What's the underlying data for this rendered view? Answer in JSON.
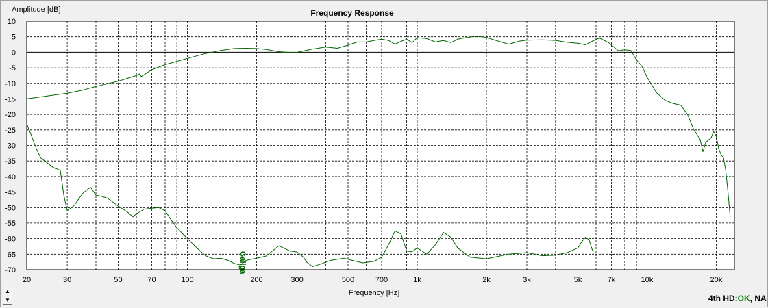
{
  "chart_data": {
    "type": "line",
    "title": "Frequency Response",
    "xlabel": "Frequency [Hz]",
    "ylabel": "Amplitude [dB]",
    "x_scale": "log",
    "xlim": [
      20,
      24000
    ],
    "ylim": [
      -70,
      10
    ],
    "grid": true,
    "x_tick_labels": [
      {
        "value": 20,
        "label": "20"
      },
      {
        "value": 30,
        "label": "30"
      },
      {
        "value": 50,
        "label": "50"
      },
      {
        "value": 70,
        "label": "70"
      },
      {
        "value": 100,
        "label": "100"
      },
      {
        "value": 200,
        "label": "200"
      },
      {
        "value": 300,
        "label": "300"
      },
      {
        "value": 500,
        "label": "500"
      },
      {
        "value": 700,
        "label": "700"
      },
      {
        "value": 1000,
        "label": "1k"
      },
      {
        "value": 2000,
        "label": "2k"
      },
      {
        "value": 3000,
        "label": "3k"
      },
      {
        "value": 5000,
        "label": "5k"
      },
      {
        "value": 7000,
        "label": "7k"
      },
      {
        "value": 10000,
        "label": "10k"
      },
      {
        "value": 20000,
        "label": "20k"
      }
    ],
    "x_minor_gridlines": [
      40,
      60,
      80,
      90,
      400,
      600,
      800,
      900,
      4000,
      6000,
      8000,
      9000
    ],
    "y_ticks": [
      10,
      5,
      0,
      -5,
      -10,
      -15,
      -20,
      -25,
      -30,
      -35,
      -40,
      -45,
      -50,
      -55,
      -60,
      -65,
      -70
    ],
    "annotation": {
      "text": "Galiga",
      "x": 170,
      "y": -64
    },
    "series": [
      {
        "color": "#006400",
        "points": [
          [
            20,
            -15
          ],
          [
            25,
            -14
          ],
          [
            30,
            -13.2
          ],
          [
            35,
            -12.2
          ],
          [
            40,
            -11
          ],
          [
            50,
            -9.3
          ],
          [
            60,
            -7.5
          ],
          [
            62,
            -7
          ],
          [
            63,
            -7.8
          ],
          [
            70,
            -5.6
          ],
          [
            80,
            -4
          ],
          [
            100,
            -2
          ],
          [
            120,
            -0.4
          ],
          [
            140,
            0.6
          ],
          [
            160,
            1.2
          ],
          [
            180,
            1.3
          ],
          [
            200,
            1.2
          ],
          [
            220,
            0.9
          ],
          [
            250,
            0.2
          ],
          [
            280,
            -0.1
          ],
          [
            300,
            0
          ],
          [
            350,
            1
          ],
          [
            400,
            1.7
          ],
          [
            450,
            1.3
          ],
          [
            500,
            2.3
          ],
          [
            550,
            3.3
          ],
          [
            600,
            3.3
          ],
          [
            650,
            3.8
          ],
          [
            700,
            4.2
          ],
          [
            750,
            3.8
          ],
          [
            800,
            2.6
          ],
          [
            850,
            3.5
          ],
          [
            900,
            4.2
          ],
          [
            950,
            3.1
          ],
          [
            1000,
            4.7
          ],
          [
            1100,
            4.4
          ],
          [
            1200,
            3.3
          ],
          [
            1300,
            3.8
          ],
          [
            1400,
            3.1
          ],
          [
            1500,
            4.2
          ],
          [
            1600,
            4.6
          ],
          [
            1800,
            5.2
          ],
          [
            2000,
            4.8
          ],
          [
            2200,
            3.8
          ],
          [
            2500,
            2.6
          ],
          [
            2800,
            3.6
          ],
          [
            3000,
            3.9
          ],
          [
            3500,
            4
          ],
          [
            4000,
            3.8
          ],
          [
            4500,
            3.2
          ],
          [
            5000,
            2.9
          ],
          [
            5400,
            2.4
          ],
          [
            5800,
            3.6
          ],
          [
            6200,
            4.6
          ],
          [
            6800,
            3.1
          ],
          [
            7500,
            0.5
          ],
          [
            8000,
            0.8
          ],
          [
            8500,
            0.6
          ],
          [
            9000,
            -2.5
          ],
          [
            9500,
            -4.5
          ],
          [
            10000,
            -8
          ],
          [
            11000,
            -13
          ],
          [
            12000,
            -15.5
          ],
          [
            13000,
            -16.5
          ],
          [
            14000,
            -17
          ],
          [
            15000,
            -20
          ],
          [
            16000,
            -25
          ],
          [
            17000,
            -28
          ],
          [
            17500,
            -32
          ],
          [
            18000,
            -29
          ],
          [
            19000,
            -27.5
          ],
          [
            19500,
            -25.5
          ],
          [
            20000,
            -27
          ],
          [
            20500,
            -31
          ],
          [
            21000,
            -33
          ],
          [
            21500,
            -34
          ],
          [
            22000,
            -38
          ],
          [
            22500,
            -45
          ],
          [
            23000,
            -53
          ]
        ]
      },
      {
        "color": "#006400",
        "points": [
          [
            20,
            -23
          ],
          [
            21,
            -27
          ],
          [
            22,
            -31
          ],
          [
            23,
            -34
          ],
          [
            26,
            -37
          ],
          [
            28,
            -38
          ],
          [
            29,
            -46
          ],
          [
            30,
            -51
          ],
          [
            32,
            -49.5
          ],
          [
            35,
            -45.5
          ],
          [
            37,
            -44
          ],
          [
            38,
            -43.5
          ],
          [
            40,
            -46
          ],
          [
            42,
            -46.3
          ],
          [
            45,
            -47
          ],
          [
            50,
            -49.5
          ],
          [
            55,
            -51.5
          ],
          [
            58,
            -53
          ],
          [
            60,
            -52
          ],
          [
            65,
            -50.5
          ],
          [
            70,
            -50.2
          ],
          [
            75,
            -50
          ],
          [
            80,
            -51
          ],
          [
            85,
            -54
          ],
          [
            90,
            -56.5
          ],
          [
            100,
            -60
          ],
          [
            110,
            -63
          ],
          [
            120,
            -65.5
          ],
          [
            130,
            -66.5
          ],
          [
            140,
            -66.3
          ],
          [
            150,
            -67
          ],
          [
            160,
            -68
          ],
          [
            170,
            -68.5
          ],
          [
            180,
            -67
          ],
          [
            200,
            -66.3
          ],
          [
            220,
            -65.6
          ],
          [
            250,
            -62.3
          ],
          [
            280,
            -64
          ],
          [
            300,
            -64.3
          ],
          [
            320,
            -66
          ],
          [
            330,
            -67.5
          ],
          [
            350,
            -69
          ],
          [
            380,
            -68.2
          ],
          [
            420,
            -67
          ],
          [
            480,
            -66.3
          ],
          [
            520,
            -67
          ],
          [
            580,
            -67.8
          ],
          [
            650,
            -67.3
          ],
          [
            700,
            -66
          ],
          [
            750,
            -62
          ],
          [
            800,
            -57.5
          ],
          [
            850,
            -58.5
          ],
          [
            900,
            -64
          ],
          [
            950,
            -64.2
          ],
          [
            1000,
            -63
          ],
          [
            1050,
            -64
          ],
          [
            1100,
            -65
          ],
          [
            1200,
            -62
          ],
          [
            1300,
            -58
          ],
          [
            1400,
            -59.5
          ],
          [
            1500,
            -63
          ],
          [
            1700,
            -66
          ],
          [
            2000,
            -66.5
          ],
          [
            2500,
            -65
          ],
          [
            3000,
            -64.5
          ],
          [
            3500,
            -65.5
          ],
          [
            4000,
            -65.3
          ],
          [
            4500,
            -64.5
          ],
          [
            5000,
            -63
          ],
          [
            5200,
            -61
          ],
          [
            5400,
            -59.5
          ],
          [
            5600,
            -60.5
          ],
          [
            5800,
            -64
          ]
        ]
      }
    ]
  },
  "ui": {
    "status_prefix": "4th HD:",
    "status_ok": "OK",
    "status_suffix": ", NA",
    "spinner_up": "▲",
    "spinner_down": "▼"
  }
}
